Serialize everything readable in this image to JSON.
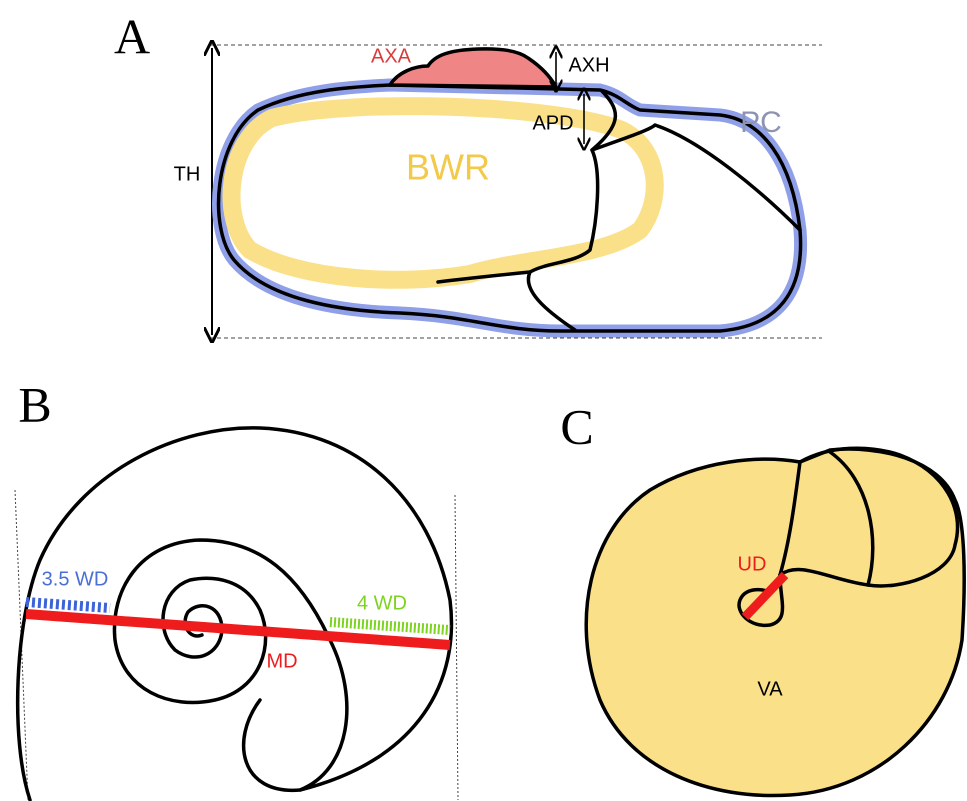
{
  "panels": [
    {
      "label": "A",
      "annotations": [
        "AXA",
        "AXH",
        "APD",
        "PC",
        "TH",
        "BWR"
      ]
    },
    {
      "label": "B",
      "annotations": [
        "3.5 WD",
        "4 WD",
        "MD"
      ]
    },
    {
      "label": "C",
      "annotations": [
        "UD",
        "VA"
      ]
    }
  ]
}
